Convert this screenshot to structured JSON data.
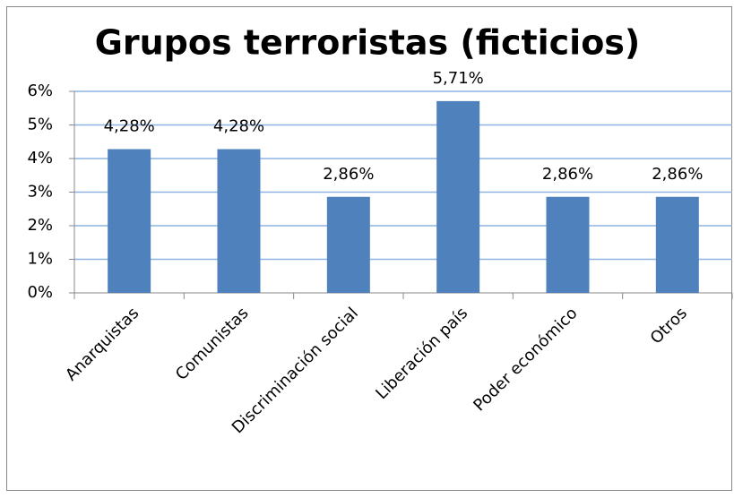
{
  "chart_data": {
    "type": "bar",
    "title": "Grupos terroristas (ficticios)",
    "categories": [
      "Anarquistas",
      "Comunistas",
      "Discriminación social",
      "Liberación país",
      "Poder económico",
      "Otros"
    ],
    "values": [
      4.28,
      4.28,
      2.86,
      5.71,
      2.86,
      2.86
    ],
    "value_labels": [
      "4,28%",
      "4,28%",
      "2,86%",
      "5,71%",
      "2,86%",
      "2,86%"
    ],
    "color": "#4f81bd",
    "ylim": [
      0,
      6
    ],
    "yticks": [
      {
        "value": 0,
        "label": "0%"
      },
      {
        "value": 1,
        "label": "1%"
      },
      {
        "value": 2,
        "label": "2%"
      },
      {
        "value": 3,
        "label": "3%"
      },
      {
        "value": 4,
        "label": "4%"
      },
      {
        "value": 5,
        "label": "5%"
      },
      {
        "value": 6,
        "label": "6%"
      }
    ],
    "grid": true
  }
}
